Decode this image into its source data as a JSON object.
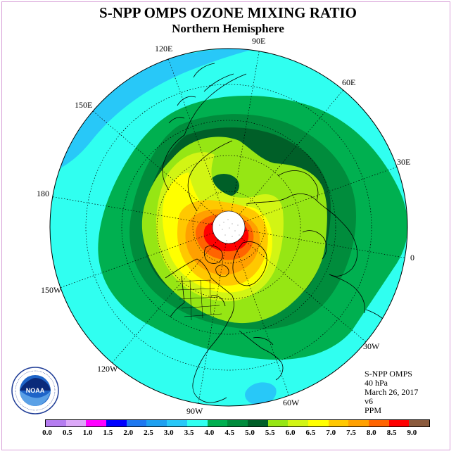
{
  "title": "S-NPP OMPS OZONE MIXING RATIO",
  "subtitle": "Northern Hemisphere",
  "longitudes": [
    "90E",
    "60E",
    "30E",
    "0",
    "30W",
    "60W",
    "90W",
    "120W",
    "150W",
    "180",
    "150E",
    "120E"
  ],
  "info": {
    "instrument": "S-NPP OMPS",
    "level": "40 hPa",
    "date": "March 26, 2017",
    "version": "v6",
    "units": "PPM"
  },
  "colorbar": {
    "ticks": [
      "0.0",
      "0.5",
      "1.0",
      "1.5",
      "2.0",
      "2.5",
      "3.0",
      "3.5",
      "4.0",
      "4.5",
      "5.0",
      "5.5",
      "6.0",
      "6.5",
      "7.0",
      "7.5",
      "8.0",
      "8.5",
      "9.0"
    ],
    "colors": [
      "#b57cf0",
      "#dca8f8",
      "#ff00ff",
      "#0000ff",
      "#1e78f0",
      "#1ea0f0",
      "#28c8f8",
      "#30fff0",
      "#00b050",
      "#008c3c",
      "#005f28",
      "#96e614",
      "#d2f514",
      "#ffff00",
      "#ffc800",
      "#ffa000",
      "#ff6400",
      "#ff0000",
      "#8b5a3c"
    ]
  },
  "logo": {
    "text": "NOAA",
    "ring_text": "NATIONAL OCEANIC AND ATMOSPHERIC ADMINISTRATION · U.S. DEPARTMENT OF COMMERCE"
  }
}
